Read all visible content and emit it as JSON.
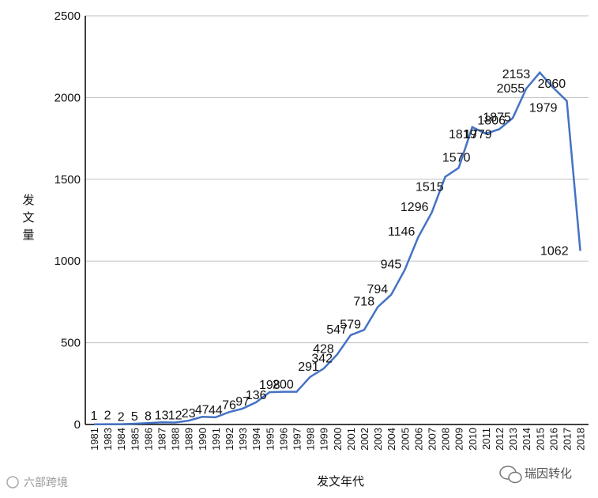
{
  "chart_data": {
    "type": "line",
    "ylabel": "发文量",
    "xlabel": "发文年代",
    "ylim": [
      0,
      2500
    ],
    "yticks": [
      "0",
      "500",
      "1000",
      "1500",
      "2000",
      "2500"
    ],
    "grid": true,
    "line_color": "#4472c4",
    "x": [
      "1981",
      "1983",
      "1984",
      "1985",
      "1986",
      "1987",
      "1988",
      "1989",
      "1990",
      "1991",
      "1992",
      "1993",
      "1994",
      "1995",
      "1996",
      "1997",
      "1998",
      "1999",
      "2000",
      "2001",
      "2002",
      "2003",
      "2004",
      "2005",
      "2006",
      "2007",
      "2008",
      "2009",
      "2010",
      "2011",
      "2012",
      "2013",
      "2014",
      "2015",
      "2016",
      "2017",
      "2018"
    ],
    "values": [
      1,
      2,
      2,
      5,
      8,
      13,
      12,
      23,
      47,
      44,
      76,
      97,
      136,
      198,
      200,
      200,
      291,
      342,
      428,
      547,
      579,
      718,
      794,
      945,
      1146,
      1296,
      1515,
      1570,
      1819,
      1779,
      1806,
      1875,
      2055,
      2153,
      2060,
      1979,
      1062
    ],
    "data_labels": [
      "1",
      "2",
      "2",
      "5",
      "8",
      "13",
      "12",
      "23",
      "47",
      "44",
      "76",
      "97",
      "136",
      "198",
      "200",
      "",
      "291",
      "342",
      "428",
      "547",
      "579",
      "718",
      "794",
      "945",
      "1146",
      "1296",
      "1515",
      "1570",
      "1819",
      "1779",
      "1806",
      "1875",
      "2055",
      "2153",
      "2060",
      "1979",
      "1062"
    ]
  },
  "watermark_left": "六部跨境",
  "watermark_right": "瑞因转化",
  "colors": {
    "line": "#4472c4",
    "grid": "#bfbfbf",
    "axis": "#000000"
  }
}
